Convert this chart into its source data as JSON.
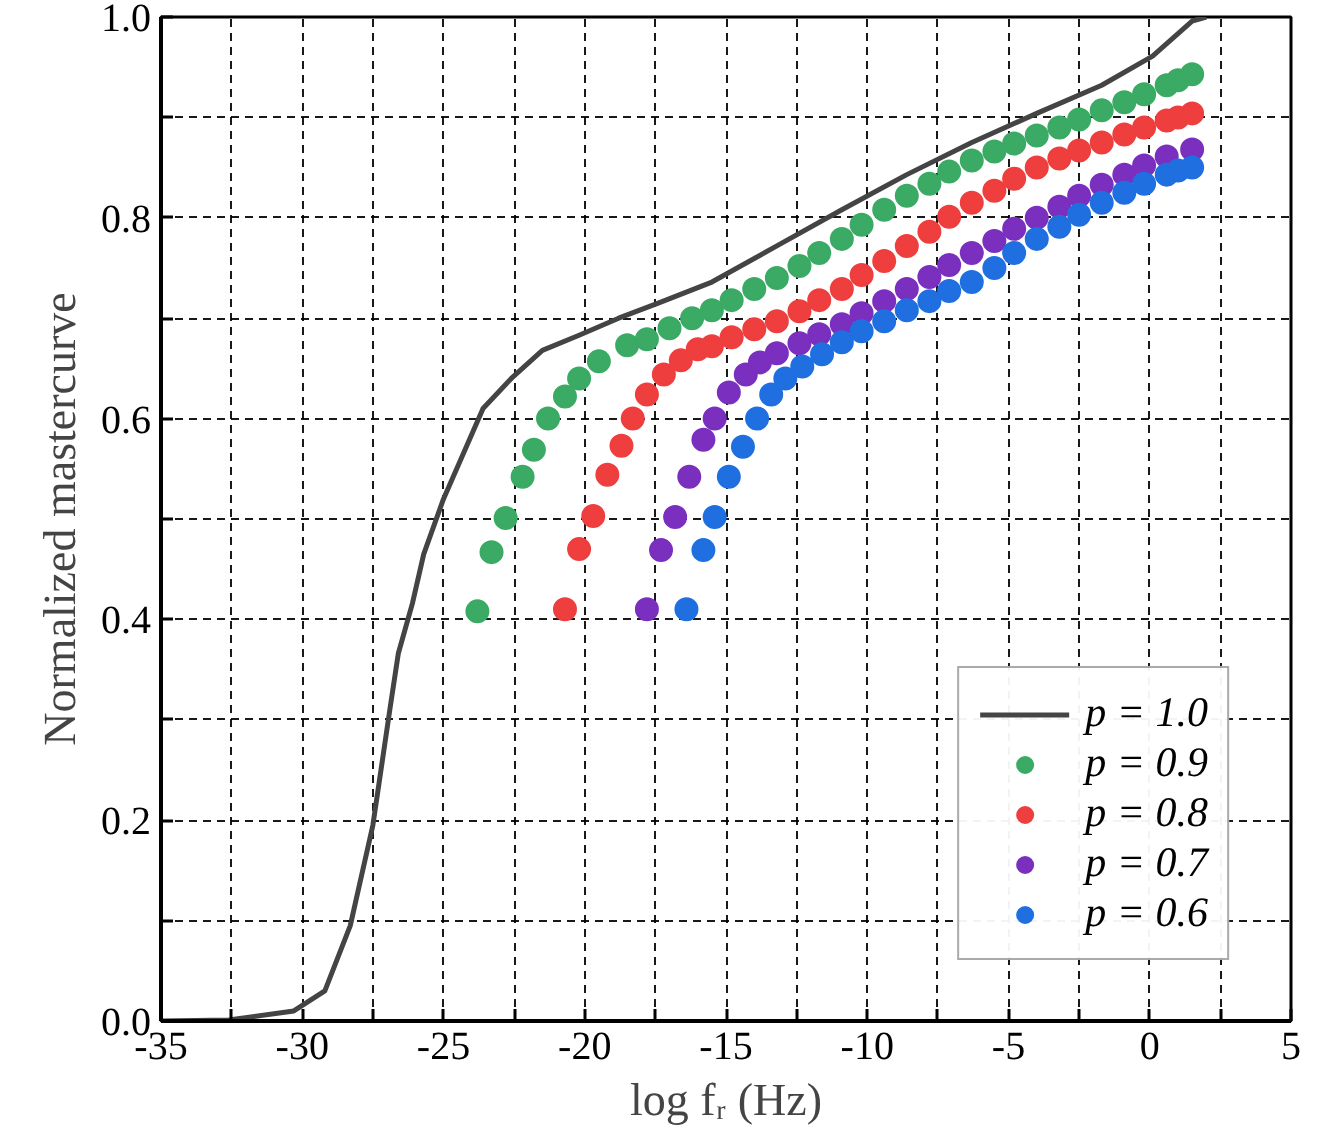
{
  "chart_data": {
    "type": "scatter",
    "xlabel": "log fᵣ (Hz)",
    "ylabel": "Normalized mastercurve",
    "xlim": [
      -35,
      5
    ],
    "ylim": [
      0,
      1
    ],
    "xticks": [
      -35,
      {
        "value": -32.5,
        "label": null
      },
      -30,
      {
        "value": -27.5,
        "label": null
      },
      -25,
      {
        "value": -22.5,
        "label": null
      },
      -20,
      {
        "value": -17.5,
        "label": null
      },
      -15,
      {
        "value": -12.5,
        "label": null
      },
      -10,
      {
        "value": -7.5,
        "label": null
      },
      -5,
      {
        "value": -2.5,
        "label": null
      },
      0,
      {
        "value": 2.5,
        "label": null
      },
      5
    ],
    "yticks": [
      {
        "value": 0,
        "label": "0.0"
      },
      {
        "value": 0.1,
        "label": null
      },
      0.2,
      {
        "value": 0.3,
        "label": null
      },
      0.4,
      {
        "value": 0.5,
        "label": null
      },
      0.6,
      {
        "value": 0.7,
        "label": null
      },
      0.8,
      {
        "value": 0.9,
        "label": null
      },
      {
        "value": 1,
        "label": "1.0"
      }
    ],
    "grid": true,
    "legend": "bottom right",
    "marker": "circle",
    "series": [
      {
        "name": "p = 1.0",
        "type": "line",
        "color": "#444444",
        "line_style": "solid",
        "marker": "none",
        "x": [
          -35,
          -32.6,
          -30.3,
          -29.2,
          -28.3,
          -27.5,
          -26.9,
          -26.6,
          -26.1,
          -25.7,
          -25.0,
          -24.3,
          -23.6,
          -22.6,
          -21.5,
          -20.2,
          -18.8,
          -17.4,
          -15.5,
          -13.2,
          -10.9,
          -8.6,
          -6.3,
          -4.0,
          -1.7,
          0.1,
          1.5,
          2.0
        ],
        "values": [
          0,
          0.001,
          0.01,
          0.03,
          0.095,
          0.195,
          0.31,
          0.366,
          0.416,
          0.465,
          0.52,
          0.565,
          0.61,
          0.64,
          0.668,
          0.683,
          0.7,
          0.715,
          0.736,
          0.772,
          0.808,
          0.843,
          0.875,
          0.904,
          0.932,
          0.961,
          0.996,
          1.0
        ]
      },
      {
        "name": "p = 0.9",
        "color": "#3aaa64",
        "x": [
          -23.8,
          -23.3,
          -22.8,
          -22.2,
          -21.8,
          -21.3,
          -20.7,
          -20.2,
          -19.5,
          -18.5,
          -17.8,
          -17.0,
          -16.2,
          -15.5,
          -14.8,
          -14.0,
          -13.2,
          -12.4,
          -11.7,
          -10.9,
          -10.2,
          -9.4,
          -8.6,
          -7.8,
          -7.1,
          -6.3,
          -5.5,
          -4.8,
          -4.0,
          -3.2,
          -2.5,
          -1.7,
          -0.9,
          -0.2,
          0.6,
          1.0,
          1.5
        ],
        "values": [
          0.408,
          0.467,
          0.501,
          0.542,
          0.569,
          0.6,
          0.622,
          0.64,
          0.657,
          0.673,
          0.679,
          0.69,
          0.7,
          0.708,
          0.718,
          0.729,
          0.74,
          0.752,
          0.765,
          0.779,
          0.793,
          0.808,
          0.822,
          0.834,
          0.846,
          0.857,
          0.866,
          0.874,
          0.882,
          0.89,
          0.898,
          0.907,
          0.915,
          0.923,
          0.932,
          0.937,
          0.943
        ]
      },
      {
        "name": "p = 0.8",
        "color": "#ee3e3e",
        "x": [
          -20.7,
          -20.2,
          -19.7,
          -19.2,
          -18.7,
          -18.3,
          -17.8,
          -17.2,
          -16.6,
          -16.0,
          -15.5,
          -14.8,
          -14.0,
          -13.2,
          -12.4,
          -11.7,
          -10.9,
          -10.2,
          -9.4,
          -8.6,
          -7.8,
          -7.1,
          -6.3,
          -5.5,
          -4.8,
          -4.0,
          -3.2,
          -2.5,
          -1.7,
          -0.9,
          -0.2,
          0.6,
          1.0,
          1.5
        ],
        "values": [
          0.41,
          0.47,
          0.503,
          0.544,
          0.573,
          0.6,
          0.624,
          0.644,
          0.658,
          0.669,
          0.672,
          0.681,
          0.689,
          0.697,
          0.707,
          0.718,
          0.729,
          0.743,
          0.757,
          0.772,
          0.786,
          0.801,
          0.815,
          0.827,
          0.839,
          0.85,
          0.859,
          0.867,
          0.875,
          0.883,
          0.89,
          0.897,
          0.9,
          0.904
        ]
      },
      {
        "name": "p = 0.7",
        "color": "#7a2fbf",
        "x": [
          -17.8,
          -17.3,
          -16.8,
          -16.3,
          -15.8,
          -15.4,
          -14.9,
          -14.3,
          -13.8,
          -13.2,
          -12.4,
          -11.7,
          -10.9,
          -10.2,
          -9.4,
          -8.6,
          -7.8,
          -7.1,
          -6.3,
          -5.5,
          -4.8,
          -4.0,
          -3.2,
          -2.5,
          -1.7,
          -0.9,
          -0.2,
          0.6,
          1.5
        ],
        "values": [
          0.41,
          0.469,
          0.502,
          0.542,
          0.579,
          0.6,
          0.626,
          0.644,
          0.656,
          0.665,
          0.675,
          0.684,
          0.694,
          0.705,
          0.717,
          0.729,
          0.741,
          0.753,
          0.765,
          0.777,
          0.789,
          0.8,
          0.811,
          0.822,
          0.833,
          0.843,
          0.852,
          0.861,
          0.868
        ]
      },
      {
        "name": "p = 0.6",
        "color": "#1f6fe0",
        "x": [
          -16.4,
          -15.8,
          -15.4,
          -14.9,
          -14.4,
          -13.9,
          -13.4,
          -12.9,
          -12.3,
          -11.6,
          -10.9,
          -10.2,
          -9.4,
          -8.6,
          -7.8,
          -7.1,
          -6.3,
          -5.5,
          -4.8,
          -4.0,
          -3.2,
          -2.5,
          -1.7,
          -0.9,
          -0.2,
          0.6,
          1.0,
          1.5
        ],
        "values": [
          0.41,
          0.469,
          0.502,
          0.542,
          0.572,
          0.6,
          0.624,
          0.64,
          0.652,
          0.664,
          0.676,
          0.687,
          0.697,
          0.708,
          0.717,
          0.727,
          0.736,
          0.75,
          0.765,
          0.779,
          0.791,
          0.803,
          0.815,
          0.825,
          0.834,
          0.843,
          0.847,
          0.85
        ]
      }
    ]
  }
}
